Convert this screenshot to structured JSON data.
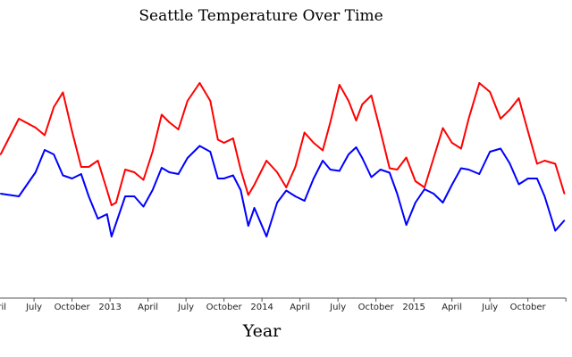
{
  "chart_data": {
    "type": "line",
    "title": "Seattle Temperature Over Time",
    "xlabel": "Year",
    "ylabel": "",
    "xlim": [
      2012.276,
      2015.999
    ],
    "ylim": [
      -20,
      46.8
    ],
    "grid": false,
    "legend": "none",
    "x_ticks": [
      {
        "x": 2012.25,
        "label": "April"
      },
      {
        "x": 2012.5,
        "label": "July"
      },
      {
        "x": 2012.75,
        "label": "October"
      },
      {
        "x": 2013.0,
        "label": "2013"
      },
      {
        "x": 2013.25,
        "label": "April"
      },
      {
        "x": 2013.5,
        "label": "July"
      },
      {
        "x": 2013.75,
        "label": "October"
      },
      {
        "x": 2014.0,
        "label": "2014"
      },
      {
        "x": 2014.25,
        "label": "April"
      },
      {
        "x": 2014.5,
        "label": "July"
      },
      {
        "x": 2014.75,
        "label": "October"
      },
      {
        "x": 2015.0,
        "label": "2015"
      },
      {
        "x": 2015.25,
        "label": "April"
      },
      {
        "x": 2015.5,
        "label": "July"
      },
      {
        "x": 2015.75,
        "label": "October"
      },
      {
        "x": 2016.0,
        "label": ""
      }
    ],
    "x": [
      2012.28,
      2012.4,
      2012.51,
      2012.57,
      2012.63,
      2012.69,
      2012.75,
      2012.81,
      2012.86,
      2012.92,
      2012.98,
      2013.01,
      2013.04,
      2013.1,
      2013.16,
      2013.22,
      2013.28,
      2013.34,
      2013.39,
      2013.45,
      2013.51,
      2013.59,
      2013.66,
      2013.71,
      2013.75,
      2013.81,
      2013.86,
      2013.91,
      2013.95,
      2014.03,
      2014.1,
      2014.16,
      2014.22,
      2014.28,
      2014.34,
      2014.4,
      2014.45,
      2014.51,
      2014.57,
      2014.62,
      2014.66,
      2014.72,
      2014.78,
      2014.84,
      2014.89,
      2014.95,
      2015.01,
      2015.07,
      2015.13,
      2015.19,
      2015.25,
      2015.31,
      2015.36,
      2015.43,
      2015.5,
      2015.57,
      2015.63,
      2015.69,
      2015.75,
      2015.81,
      2015.86,
      2015.93,
      2015.99
    ],
    "series": [
      {
        "color": "#ff0000",
        "values": [
          12.2,
          20.2,
          18.2,
          16.5,
          22.8,
          26.1,
          17.4,
          9.4,
          9.4,
          10.8,
          4.2,
          0.8,
          1.4,
          8.8,
          8.2,
          6.5,
          12.8,
          21.1,
          19.4,
          17.8,
          24.2,
          28.2,
          24.2,
          15.5,
          14.8,
          15.8,
          8.8,
          3.1,
          5.4,
          10.8,
          8.2,
          4.8,
          9.4,
          17.1,
          14.8,
          13.1,
          19.4,
          27.8,
          24.2,
          19.8,
          23.4,
          25.4,
          17.4,
          9.1,
          8.8,
          11.5,
          6.2,
          4.8,
          11.4,
          18.1,
          14.8,
          13.5,
          20.2,
          28.2,
          26.2,
          20.2,
          22.2,
          24.8,
          17.4,
          10.1,
          10.8,
          10.1,
          3.4
        ]
      },
      {
        "color": "#0000ff",
        "values": [
          3.4,
          2.8,
          8.2,
          13.2,
          12.2,
          7.5,
          6.8,
          7.8,
          2.8,
          -2.2,
          -1.2,
          -6.2,
          -3.2,
          2.8,
          2.8,
          0.5,
          4.2,
          9.2,
          8.2,
          7.8,
          11.4,
          14.1,
          12.8,
          6.8,
          6.8,
          7.5,
          4.2,
          -3.8,
          0.2,
          -6.2,
          1.4,
          4.1,
          2.8,
          1.8,
          6.8,
          10.8,
          8.8,
          8.5,
          12.2,
          13.8,
          11.4,
          7.1,
          8.8,
          8.1,
          3.4,
          -3.6,
          1.4,
          4.4,
          3.4,
          1.4,
          5.4,
          9.1,
          8.8,
          7.8,
          12.8,
          13.5,
          10.2,
          5.5,
          6.8,
          6.8,
          2.8,
          -4.9,
          -2.6
        ]
      }
    ]
  }
}
